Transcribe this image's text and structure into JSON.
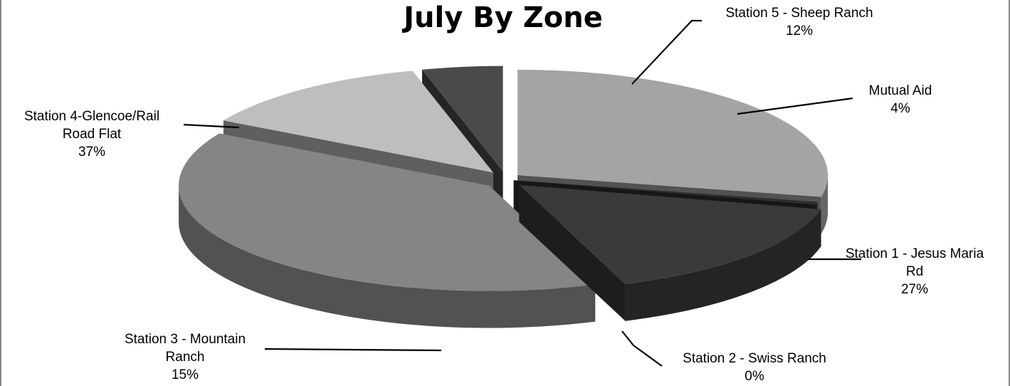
{
  "chart_data": {
    "type": "pie",
    "title": "July By Zone",
    "legend": "none",
    "slices": [
      {
        "label_lines": [
          "Station 1 - Jesus Maria",
          "Rd"
        ],
        "pct_label": "27%",
        "value": 27,
        "color": "#a4a4a4"
      },
      {
        "label_lines": [
          "Station 2 - Swiss Ranch"
        ],
        "pct_label": "0%",
        "value": 0.4,
        "color": "#2e2e2e"
      },
      {
        "label_lines": [
          "Station 3 - Mountain",
          "Ranch"
        ],
        "pct_label": "15%",
        "value": 15,
        "color": "#3a3a3a"
      },
      {
        "label_lines": [
          "Station 4-Glencoe/Rail",
          "Road Flat"
        ],
        "pct_label": "37%",
        "value": 37,
        "color": "#858585"
      },
      {
        "label_lines": [
          "Station 5 - Sheep Ranch"
        ],
        "pct_label": "12%",
        "value": 12,
        "color": "#bebebe"
      },
      {
        "label_lines": [
          "Mutual Aid"
        ],
        "pct_label": "4%",
        "value": 4,
        "color": "#4a4a4a"
      }
    ]
  }
}
